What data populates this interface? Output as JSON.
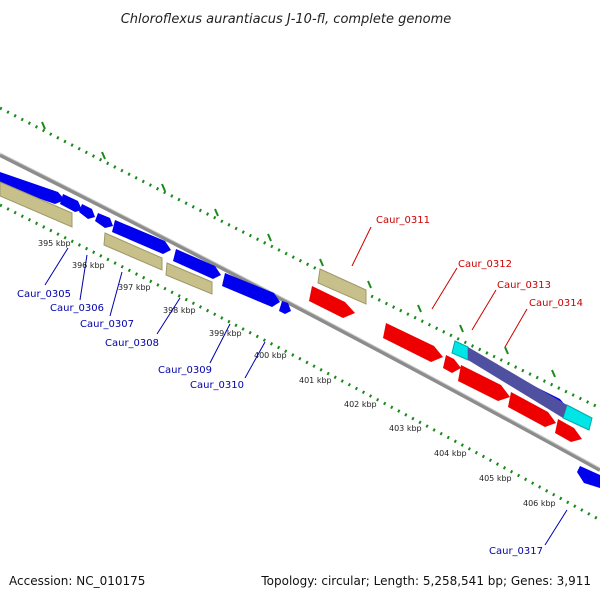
{
  "title": "Chloroflexus aurantiacus J-10-fl, complete genome",
  "footer": {
    "accession": "Accession: NC_010175",
    "summary": "Topology: circular; Length: 5,258,541 bp; Genes: 3,911"
  },
  "kbp_ticks": [
    "395 kbp",
    "396 kbp",
    "397 kbp",
    "398 kbp",
    "399 kbp",
    "400 kbp",
    "401 kbp",
    "402 kbp",
    "403 kbp",
    "404 kbp",
    "405 kbp",
    "406 kbp"
  ],
  "gene_labels": [
    {
      "text": "Caur_0305",
      "strand": "forward"
    },
    {
      "text": "Caur_0306",
      "strand": "forward"
    },
    {
      "text": "Caur_0307",
      "strand": "forward"
    },
    {
      "text": "Caur_0308",
      "strand": "forward"
    },
    {
      "text": "Caur_0309",
      "strand": "forward"
    },
    {
      "text": "Caur_0310",
      "strand": "forward"
    },
    {
      "text": "Caur_0311",
      "strand": "reverse"
    },
    {
      "text": "Caur_0312",
      "strand": "reverse"
    },
    {
      "text": "Caur_0313",
      "strand": "reverse"
    },
    {
      "text": "Caur_0314",
      "strand": "reverse"
    },
    {
      "text": "Caur_0317",
      "strand": "forward"
    }
  ],
  "colors": {
    "forward_cds": "#0000ee",
    "reverse_cds": "#ee0000",
    "rna_feature": "#c8c08a",
    "highlight": "#00e5e5",
    "overlap": "#5050a0",
    "forward_label": "#0000aa",
    "reverse_label": "#cc0000",
    "backbone": "#888888",
    "tick_dots": "#1a8a1a"
  }
}
